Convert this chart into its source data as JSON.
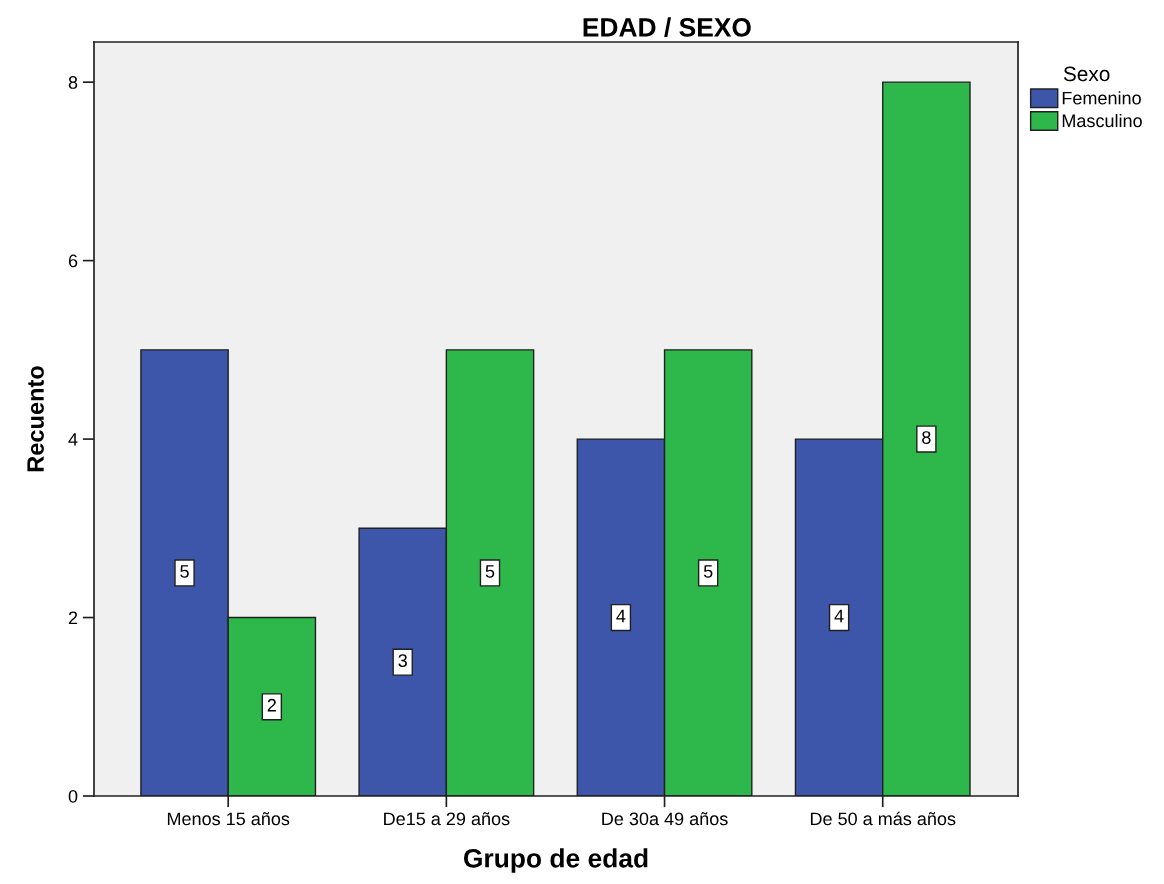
{
  "chart_data": {
    "type": "bar",
    "title": "EDAD / SEXO",
    "xlabel": "Grupo de edad",
    "ylabel": "Recuento",
    "legend_title": "Sexo",
    "categories": [
      "Menos 15 años",
      "De15 a 29 años",
      "De 30a 49 años",
      "De 50 a más años"
    ],
    "series": [
      {
        "name": "Femenino",
        "color": "#3e56aa",
        "values": [
          5,
          3,
          4,
          4
        ]
      },
      {
        "name": "Masculino",
        "color": "#2eb84c",
        "values": [
          2,
          5,
          5,
          8
        ]
      }
    ],
    "ylim": [
      0,
      8.45
    ],
    "yticks": [
      0,
      2,
      4,
      6,
      8
    ],
    "grid": false,
    "legend": "top right",
    "data_labels": true
  }
}
